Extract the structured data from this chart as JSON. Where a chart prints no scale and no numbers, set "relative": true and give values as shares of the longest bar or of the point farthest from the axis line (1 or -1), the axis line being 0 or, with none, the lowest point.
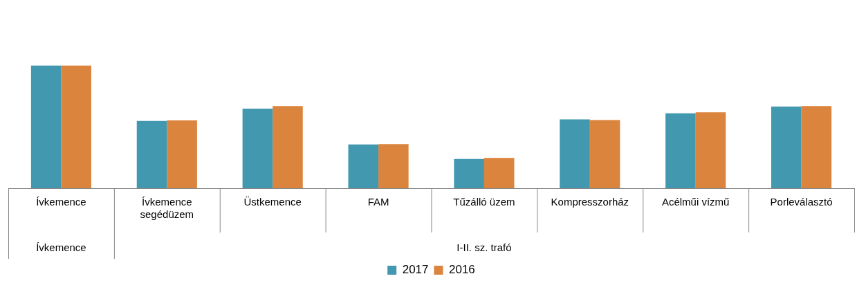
{
  "chart_data": {
    "type": "bar",
    "relative": true,
    "categories": [
      "Ívkemence",
      "Ívkemence segédüzem",
      "Üstkemence",
      "FAM",
      "Tűzálló üzem",
      "Kompresszorház",
      "Acélműi vízmű",
      "Porleválasztó"
    ],
    "series": [
      {
        "name": "2017",
        "color": "#4198af",
        "values": [
          1,
          0.548,
          0.649,
          0.356,
          0.238,
          0.561,
          0.611,
          0.665
        ]
      },
      {
        "name": "2016",
        "color": "#db843d",
        "values": [
          1,
          0.552,
          0.669,
          0.36,
          0.247,
          0.556,
          0.619,
          0.669
        ]
      }
    ],
    "annotations": [
      "Ívkemence",
      "I-II. sz. trafó"
    ],
    "legend": "bottom"
  }
}
